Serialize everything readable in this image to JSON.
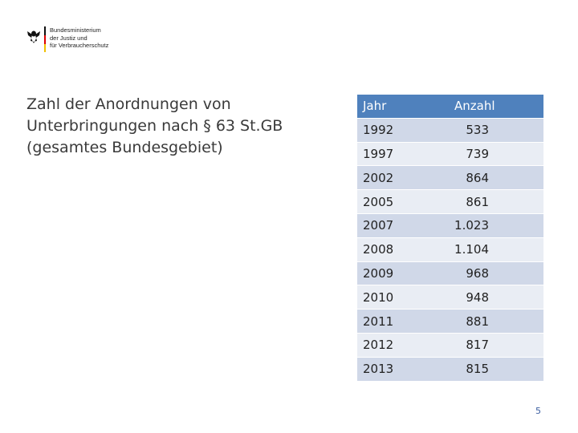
{
  "logo": {
    "lines": [
      "Bundesministerium",
      "der Justiz und",
      "für Verbraucherschutz"
    ]
  },
  "title": {
    "lines": [
      "Zahl der Anordnungen von",
      "Unterbringungen nach § 63 St.GB",
      "(gesamtes Bundesgebiet)"
    ]
  },
  "table": {
    "header": [
      "Jahr",
      "Anzahl"
    ],
    "rows": [
      [
        "1992",
        "533"
      ],
      [
        "1997",
        "739"
      ],
      [
        "2002",
        "864"
      ],
      [
        "2005",
        "861"
      ],
      [
        "2007",
        "1.023"
      ],
      [
        "2008",
        "1.104"
      ],
      [
        "2009",
        "968"
      ],
      [
        "2010",
        "948"
      ],
      [
        "2011",
        "881"
      ],
      [
        "2012",
        "817"
      ],
      [
        "2013",
        "815"
      ]
    ]
  },
  "page_number": "5"
}
